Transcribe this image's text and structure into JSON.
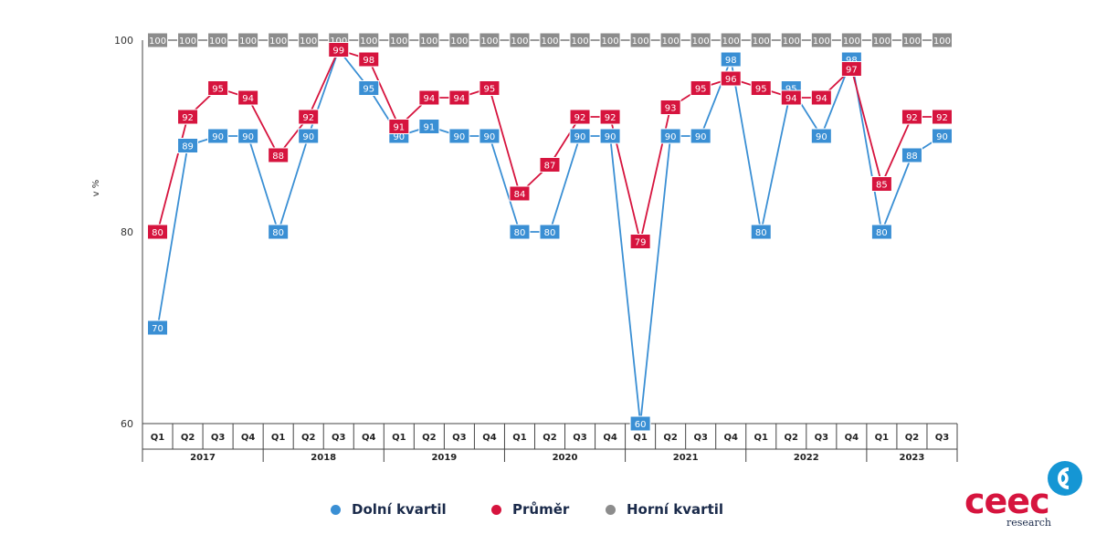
{
  "chart_data": {
    "type": "line",
    "ylabel": "v %",
    "ylim": [
      60,
      100
    ],
    "yticks": [
      "60",
      "80",
      "100"
    ],
    "quarters": [
      "Q1",
      "Q2",
      "Q3",
      "Q4",
      "Q1",
      "Q2",
      "Q3",
      "Q4",
      "Q1",
      "Q2",
      "Q3",
      "Q4",
      "Q1",
      "Q2",
      "Q3",
      "Q4",
      "Q1",
      "Q2",
      "Q3",
      "Q4",
      "Q1",
      "Q2",
      "Q3",
      "Q4",
      "Q1",
      "Q2",
      "Q3"
    ],
    "years": [
      {
        "label": "2017",
        "count": 4
      },
      {
        "label": "2018",
        "count": 4
      },
      {
        "label": "2019",
        "count": 4
      },
      {
        "label": "2020",
        "count": 4
      },
      {
        "label": "2021",
        "count": 4
      },
      {
        "label": "2022",
        "count": 4
      },
      {
        "label": "2023",
        "count": 3
      }
    ],
    "series": [
      {
        "name": "Dolní kvartil",
        "color": "#3a8fd4",
        "values": [
          70,
          89,
          90,
          90,
          80,
          90,
          99,
          95,
          90,
          91,
          90,
          90,
          80,
          80,
          90,
          90,
          60,
          90,
          90,
          98,
          80,
          95,
          90,
          98,
          80,
          88,
          90
        ]
      },
      {
        "name": "Průměr",
        "color": "#d6143e",
        "values": [
          80,
          92,
          95,
          94,
          88,
          92,
          99,
          98,
          91,
          94,
          94,
          95,
          84,
          87,
          92,
          92,
          79,
          93,
          95,
          96,
          95,
          94,
          94,
          97,
          85,
          92,
          92
        ]
      },
      {
        "name": "Horní kvartil",
        "color": "#8c8c8c",
        "values": [
          100,
          100,
          100,
          100,
          100,
          100,
          100,
          100,
          100,
          100,
          100,
          100,
          100,
          100,
          100,
          100,
          100,
          100,
          100,
          100,
          100,
          100,
          100,
          100,
          100,
          100,
          100
        ]
      }
    ]
  },
  "legend": [
    {
      "label": "Dolní kvartil",
      "color": "#3a8fd4"
    },
    {
      "label": "Průměr",
      "color": "#d6143e"
    },
    {
      "label": "Horní kvartil",
      "color": "#8c8c8c"
    }
  ],
  "logo": {
    "word": "ceec",
    "sub": "research"
  }
}
